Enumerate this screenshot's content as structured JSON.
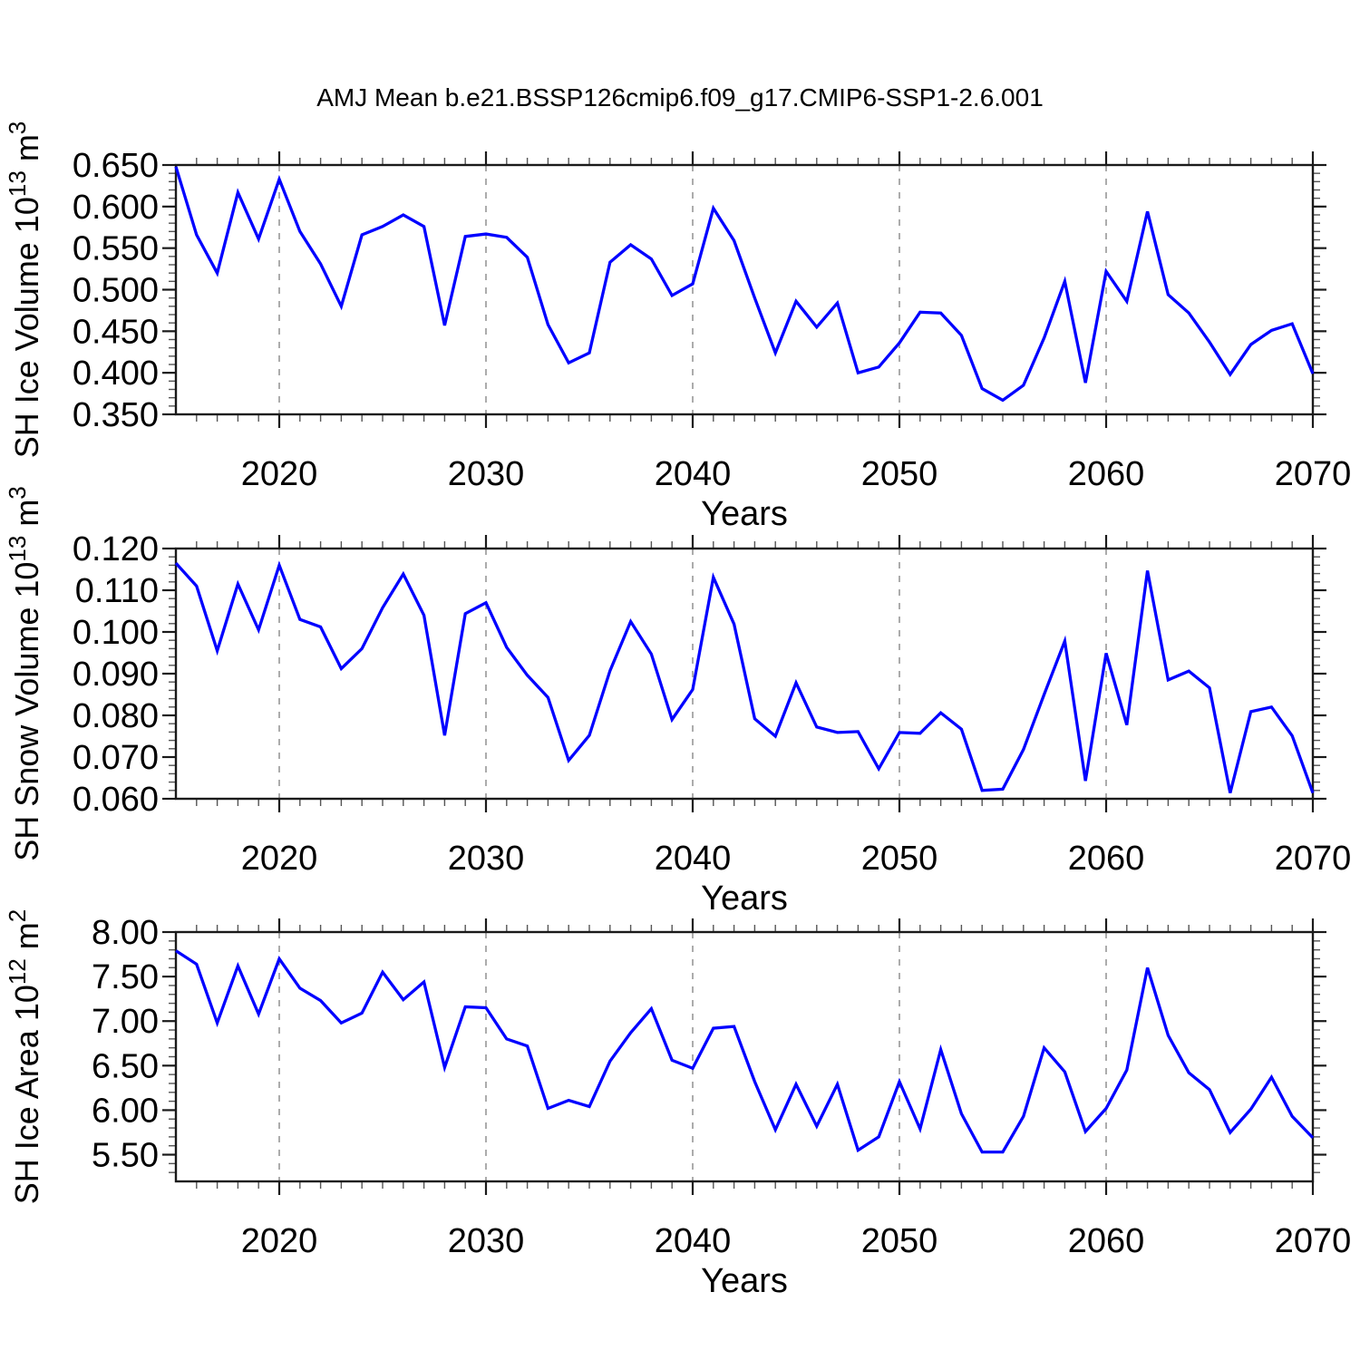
{
  "title": "AMJ Mean b.e21.BSSP126cmip6.f09_g17.CMIP6-SSP1-2.6.001",
  "colors": {
    "line": "#0000ff",
    "grid": "#919191",
    "axis": "#1a1a1a",
    "minor_tick": "#555555",
    "text": "#000000",
    "background": "#ffffff"
  },
  "x_axis": {
    "label": "Years",
    "tick_labels": [
      "2020",
      "2030",
      "2040",
      "2050",
      "2060",
      "2070"
    ],
    "tick_values": [
      2020,
      2030,
      2040,
      2050,
      2060,
      2070
    ],
    "grid_years": [
      2020,
      2030,
      2040,
      2050,
      2060
    ],
    "range": [
      2015,
      2070
    ],
    "minor_step": 1
  },
  "years": [
    2015,
    2016,
    2017,
    2018,
    2019,
    2020,
    2021,
    2022,
    2023,
    2024,
    2025,
    2026,
    2027,
    2028,
    2029,
    2030,
    2031,
    2032,
    2033,
    2034,
    2035,
    2036,
    2037,
    2038,
    2039,
    2040,
    2041,
    2042,
    2043,
    2044,
    2045,
    2046,
    2047,
    2048,
    2049,
    2050,
    2051,
    2052,
    2053,
    2054,
    2055,
    2056,
    2057,
    2058,
    2059,
    2060,
    2061,
    2062,
    2063,
    2064,
    2065,
    2066,
    2067,
    2068,
    2069,
    2070
  ],
  "chart_data": [
    {
      "type": "line",
      "series_name": "SH Ice Volume",
      "ylabel_text": "SH Ice Volume 10^13 m^3",
      "ylabel_parts": {
        "base1": "SH Ice Volume 10",
        "sup1": "13",
        "base2": " m",
        "sup2": "3"
      },
      "xlabel": "Years",
      "ylim": [
        0.35,
        0.65
      ],
      "ytick_labels": [
        "0.650",
        "0.600",
        "0.550",
        "0.500",
        "0.450",
        "0.400",
        "0.350"
      ],
      "ytick_values": [
        0.65,
        0.6,
        0.55,
        0.5,
        0.45,
        0.4,
        0.35
      ],
      "y_minor_step": 0.01,
      "grid": "vertical dashed at decades",
      "legend": "none",
      "values": [
        0.648,
        0.566,
        0.52,
        0.617,
        0.561,
        0.633,
        0.57,
        0.531,
        0.48,
        0.566,
        0.576,
        0.59,
        0.576,
        0.457,
        0.564,
        0.567,
        0.563,
        0.539,
        0.458,
        0.412,
        0.424,
        0.533,
        0.554,
        0.537,
        0.493,
        0.507,
        0.598,
        0.559,
        0.49,
        0.424,
        0.486,
        0.455,
        0.484,
        0.4,
        0.407,
        0.436,
        0.473,
        0.472,
        0.445,
        0.381,
        0.367,
        0.385,
        0.442,
        0.51,
        0.388,
        0.522,
        0.486,
        0.594,
        0.494,
        0.472,
        0.437,
        0.398,
        0.434,
        0.451,
        0.459,
        0.399
      ]
    },
    {
      "type": "line",
      "series_name": "SH Snow Volume",
      "ylabel_text": "SH Snow Volume 10^13 m^3",
      "ylabel_parts": {
        "base1": "SH Snow Volume 10",
        "sup1": "13",
        "base2": " m",
        "sup2": "3"
      },
      "xlabel": "Years",
      "ylim": [
        0.06,
        0.12
      ],
      "ytick_labels": [
        "0.120",
        "0.110",
        "0.100",
        "0.090",
        "0.080",
        "0.070",
        "0.060"
      ],
      "ytick_values": [
        0.12,
        0.11,
        0.1,
        0.09,
        0.08,
        0.07,
        0.06
      ],
      "y_minor_step": 0.002,
      "grid": "vertical dashed at decades",
      "legend": "none",
      "values": [
        0.1165,
        0.111,
        0.0955,
        0.1115,
        0.1005,
        0.116,
        0.103,
        0.1012,
        0.0912,
        0.096,
        0.1058,
        0.1139,
        0.104,
        0.0752,
        0.1044,
        0.107,
        0.0963,
        0.0896,
        0.0843,
        0.0692,
        0.0752,
        0.0907,
        0.1025,
        0.0947,
        0.079,
        0.0862,
        0.1131,
        0.1019,
        0.0792,
        0.075,
        0.0878,
        0.0772,
        0.0759,
        0.0761,
        0.0672,
        0.0759,
        0.0757,
        0.0806,
        0.0767,
        0.062,
        0.0623,
        0.0718,
        0.085,
        0.0978,
        0.0643,
        0.0949,
        0.0777,
        0.1147,
        0.0885,
        0.0906,
        0.0866,
        0.0614,
        0.0809,
        0.082,
        0.0751,
        0.0614
      ]
    },
    {
      "type": "line",
      "series_name": "SH Ice Area",
      "ylabel_text": "SH Ice Area 10^12 m^2",
      "ylabel_parts": {
        "base1": "SH Ice Area 10",
        "sup1": "12",
        "base2": " m",
        "sup2": "2"
      },
      "xlabel": "Years",
      "ylim": [
        5.2,
        8.0
      ],
      "ytick_labels": [
        "8.00",
        "7.50",
        "7.00",
        "6.50",
        "6.00",
        "5.50"
      ],
      "ytick_values": [
        8.0,
        7.5,
        7.0,
        6.5,
        6.0,
        5.5
      ],
      "y_minor_step": 0.1,
      "grid": "vertical dashed at decades",
      "legend": "none",
      "values": [
        7.79,
        7.64,
        6.98,
        7.62,
        7.08,
        7.7,
        7.37,
        7.23,
        6.98,
        7.09,
        7.55,
        7.24,
        7.44,
        6.48,
        7.16,
        7.15,
        6.8,
        6.72,
        6.02,
        6.11,
        6.04,
        6.55,
        6.87,
        7.14,
        6.56,
        6.47,
        6.92,
        6.94,
        6.32,
        5.78,
        6.29,
        5.82,
        6.29,
        5.55,
        5.7,
        6.32,
        5.79,
        6.68,
        5.96,
        5.53,
        5.53,
        5.93,
        6.7,
        6.43,
        5.76,
        6.02,
        6.45,
        7.6,
        6.84,
        6.42,
        6.23,
        5.75,
        6.01,
        6.37,
        5.93,
        5.69
      ]
    }
  ]
}
